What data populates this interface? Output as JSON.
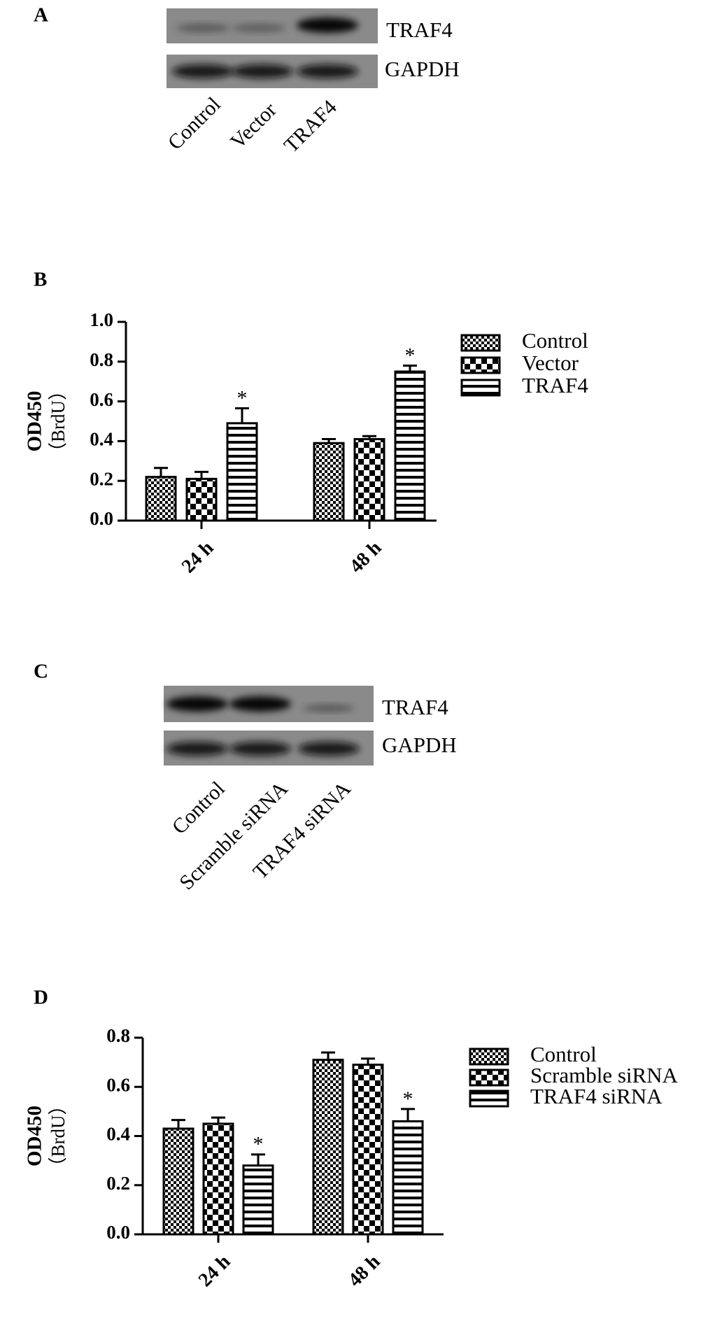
{
  "blots": [
    {
      "panel": "A",
      "bands": [
        "TRAF4",
        "GAPDH"
      ],
      "lanes": [
        "Control",
        "Vector",
        "TRAF4"
      ]
    },
    {
      "panel": "C",
      "bands": [
        "TRAF4",
        "GAPDH"
      ],
      "lanes": [
        "Control",
        "Scramble siRNA",
        "TRAF4 siRNA"
      ]
    }
  ],
  "chart_data": [
    {
      "type": "bar",
      "panel": "B",
      "ylabel": [
        "OD450",
        "（BrdU）"
      ],
      "categories": [
        "24 h",
        "48 h"
      ],
      "series": [
        {
          "name": "Control",
          "color": "#000000",
          "pattern": "fine-check",
          "values": [
            0.22,
            0.39
          ],
          "errors": [
            0.045,
            0.02
          ]
        },
        {
          "name": "Vector",
          "color": "#000000",
          "pattern": "coarse-check",
          "values": [
            0.21,
            0.41
          ],
          "errors": [
            0.035,
            0.015
          ]
        },
        {
          "name": "TRAF4",
          "color": "#000000",
          "pattern": "stripes",
          "values": [
            0.49,
            0.75
          ],
          "errors": [
            0.075,
            0.03
          ],
          "annotations": [
            "*",
            "*"
          ]
        }
      ],
      "ylim": [
        0,
        1.0
      ],
      "yticks": [
        {
          "value": 0,
          "label": "0.0"
        },
        0.2,
        0.4,
        0.6,
        0.8,
        {
          "value": 1.0,
          "label": "1.0"
        }
      ]
    },
    {
      "type": "bar",
      "panel": "D",
      "ylabel": [
        "OD450",
        "（BrdU）"
      ],
      "categories": [
        "24 h",
        "48 h"
      ],
      "series": [
        {
          "name": "Control",
          "color": "#000000",
          "pattern": "fine-check",
          "values": [
            0.43,
            0.71
          ],
          "errors": [
            0.035,
            0.03
          ]
        },
        {
          "name": "Scramble siRNA",
          "color": "#000000",
          "pattern": "coarse-check",
          "values": [
            0.45,
            0.69
          ],
          "errors": [
            0.025,
            0.025
          ]
        },
        {
          "name": "TRAF4 siRNA",
          "color": "#000000",
          "pattern": "stripes",
          "values": [
            0.28,
            0.46
          ],
          "errors": [
            0.045,
            0.05
          ],
          "annotations": [
            "*",
            "*"
          ]
        }
      ],
      "ylim": [
        0,
        0.8
      ],
      "yticks": [
        {
          "value": 0,
          "label": "0.0"
        },
        0.2,
        0.4,
        0.6,
        0.8
      ]
    }
  ]
}
